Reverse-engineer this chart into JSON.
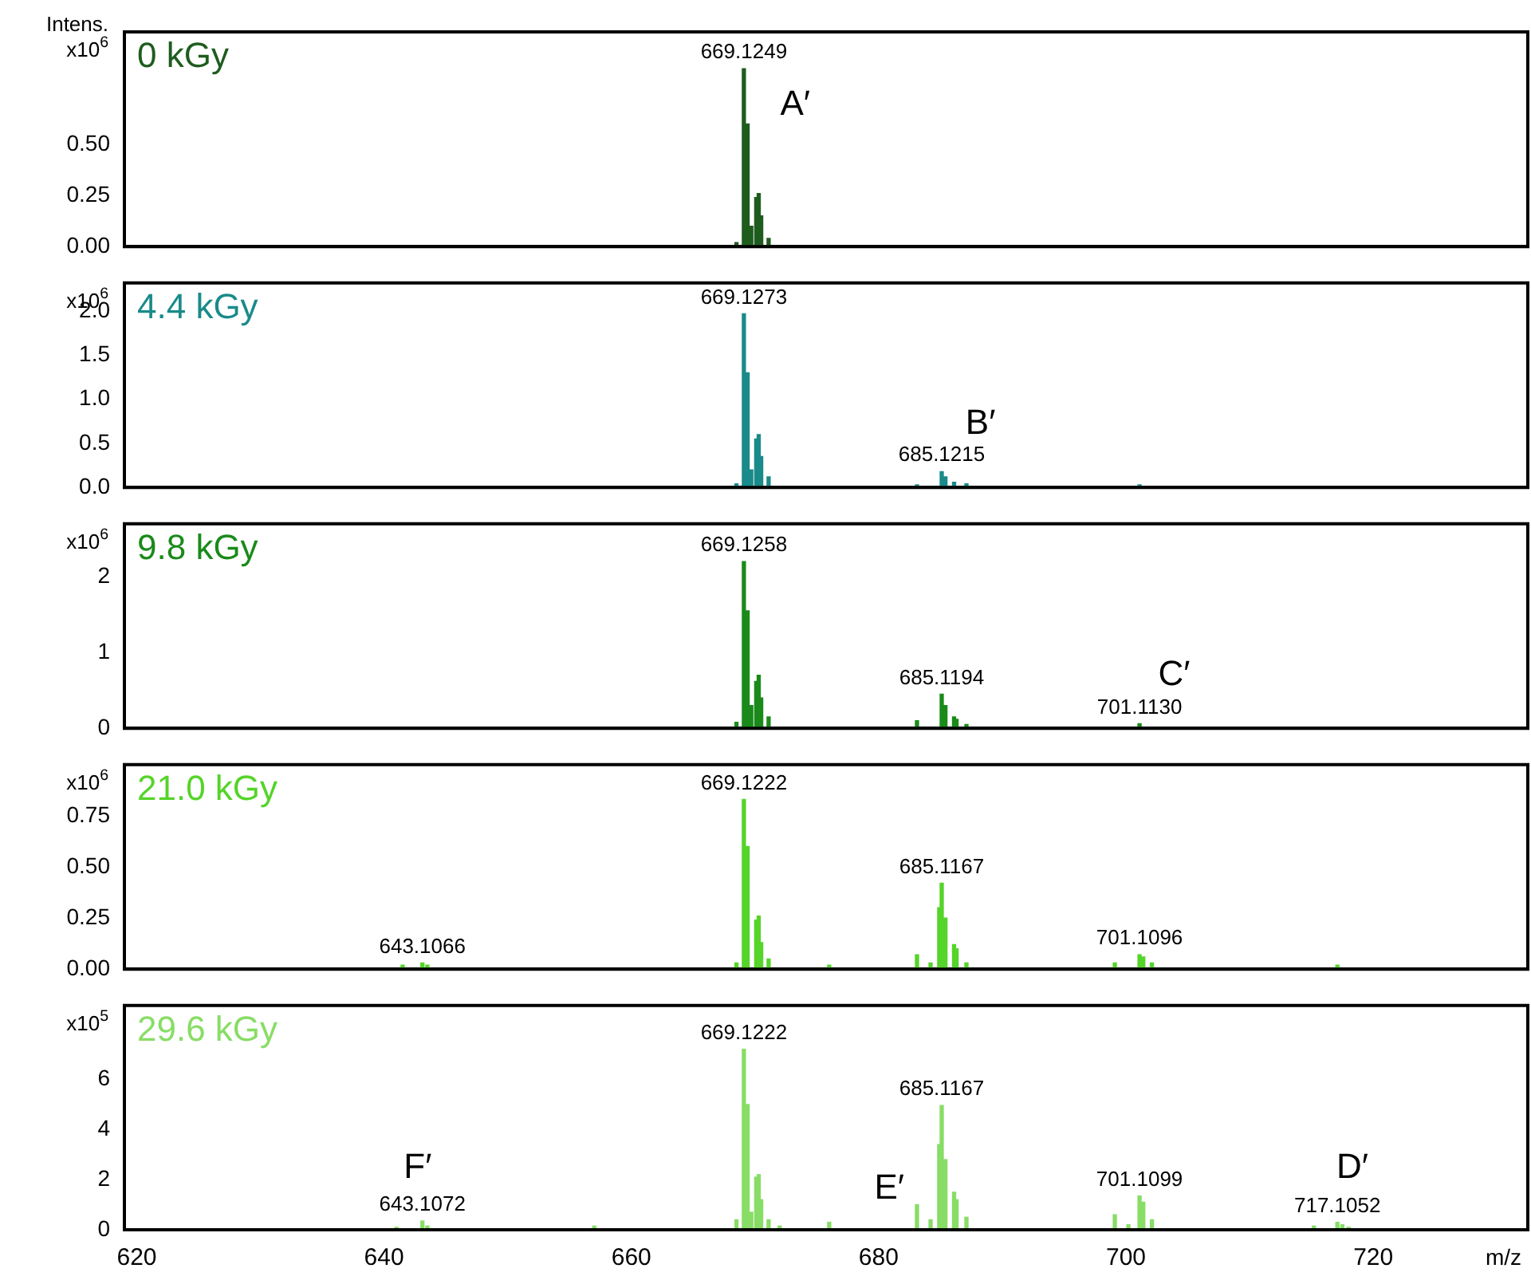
{
  "chart_data": [
    {
      "type": "bar",
      "title": "0 kGy",
      "ylabel": "Intens.\nx10$^{6}$",
      "tick_labels": "y",
      "xlim": [
        619,
        732.5
      ],
      "xticks": [
        620,
        640,
        660,
        680,
        700,
        720
      ],
      "ylim": [
        0,
        1.05
      ],
      "yticks": [
        {
          "value": 0,
          "label": "0.00"
        },
        0.25,
        {
          "value": 0.5,
          "label": "0.50"
        }
      ],
      "color": "#1e5c1e",
      "x": [
        668.5,
        669.1,
        669.4,
        669.7,
        670.1,
        670.3,
        670.5,
        671.1
      ],
      "values": [
        0.02,
        0.87,
        0.6,
        0.1,
        0.24,
        0.26,
        0.15,
        0.04
      ],
      "annotations": [
        {
          "text": "669.1249",
          "x": 669.1,
          "y": 0.87
        },
        "A′"
      ]
    },
    {
      "type": "bar",
      "title": "4.4 kGy",
      "ylabel": "x10$^{6}$",
      "tick_labels": "y",
      "xlim": [
        619,
        732.5
      ],
      "xticks": [
        620,
        640,
        660,
        680,
        700,
        720
      ],
      "ylim": [
        0,
        2.32
      ],
      "yticks": [
        {
          "value": 0,
          "label": "0.0"
        },
        0.5,
        {
          "value": 1,
          "label": "1.0"
        },
        1.5,
        {
          "value": 2,
          "label": "2.0"
        }
      ],
      "color": "#1a8a8a",
      "x": [
        668.5,
        669.1,
        669.4,
        669.7,
        670.1,
        670.3,
        670.5,
        671.1,
        683.1,
        685.1,
        685.4,
        686.1,
        687.1,
        701.1
      ],
      "values": [
        0.04,
        1.97,
        1.3,
        0.2,
        0.55,
        0.6,
        0.35,
        0.12,
        0.03,
        0.18,
        0.12,
        0.06,
        0.04,
        0.03
      ],
      "annotations": [
        {
          "text": "669.1273",
          "x": 669.1,
          "y": 1.97
        },
        {
          "text": "685.1215",
          "x": 685.1,
          "y": 0.18
        },
        "B′"
      ]
    },
    {
      "type": "bar",
      "title": "9.8 kGy",
      "ylabel": "x10$^{6}$",
      "tick_labels": "y",
      "xlim": [
        619,
        732.5
      ],
      "xticks": [
        620,
        640,
        660,
        680,
        700,
        720
      ],
      "ylim": [
        0,
        2.7
      ],
      "yticks": [
        0,
        1,
        2
      ],
      "color": "#1a8a1a",
      "x": [
        668.5,
        669.1,
        669.4,
        669.7,
        670.1,
        670.3,
        670.5,
        671.1,
        683.1,
        685.1,
        685.4,
        686.1,
        686.3,
        687.1,
        701.1
      ],
      "values": [
        0.08,
        2.2,
        1.55,
        0.3,
        0.62,
        0.7,
        0.4,
        0.15,
        0.1,
        0.45,
        0.3,
        0.15,
        0.12,
        0.05,
        0.06
      ],
      "annotations": [
        {
          "text": "669.1258",
          "x": 669.1,
          "y": 2.2
        },
        {
          "text": "685.1194",
          "x": 685.1,
          "y": 0.45
        },
        {
          "text": "701.1130",
          "x": 701.1,
          "y": 0.06
        },
        "C′"
      ]
    },
    {
      "type": "bar",
      "title": "21.0 kGy",
      "ylabel": "x10$^{6}$",
      "tick_labels": "y",
      "xlim": [
        619,
        732.5
      ],
      "xticks": [
        620,
        640,
        660,
        680,
        700,
        720
      ],
      "ylim": [
        0,
        1.0
      ],
      "yticks": [
        {
          "value": 0,
          "label": "0.00"
        },
        0.25,
        {
          "value": 0.5,
          "label": "0.50"
        },
        0.75
      ],
      "color": "#55d42a",
      "x": [
        641.5,
        643.1,
        643.5,
        668.5,
        669.1,
        669.4,
        670.1,
        670.3,
        670.5,
        671.1,
        676,
        683.1,
        684.2,
        684.9,
        685.1,
        685.4,
        686.1,
        686.3,
        687.1,
        699.1,
        701.1,
        701.4,
        702.1,
        717.1
      ],
      "values": [
        0.02,
        0.03,
        0.02,
        0.03,
        0.83,
        0.6,
        0.24,
        0.26,
        0.13,
        0.05,
        0.02,
        0.07,
        0.03,
        0.3,
        0.42,
        0.25,
        0.12,
        0.1,
        0.03,
        0.03,
        0.07,
        0.06,
        0.03,
        0.02
      ],
      "annotations": [
        {
          "text": "669.1222",
          "x": 669.1,
          "y": 0.83
        },
        {
          "text": "685.1167",
          "x": 685.1,
          "y": 0.42
        },
        {
          "text": "643.1066",
          "x": 643.1,
          "y": 0.03
        },
        {
          "text": "701.1096",
          "x": 701.1,
          "y": 0.07
        }
      ]
    },
    {
      "type": "bar",
      "title": "29.6 kGy",
      "ylabel": "x10$^{5}$",
      "xlabel": "m/z",
      "xlim": [
        619,
        732.5
      ],
      "xticks": [
        620,
        640,
        660,
        680,
        700,
        720
      ],
      "ylim": [
        0,
        8.95
      ],
      "yticks": [
        0,
        2,
        4,
        6
      ],
      "color": "#88dd66",
      "x": [
        641,
        643.1,
        643.5,
        657,
        668.5,
        669.1,
        669.4,
        669.7,
        670.1,
        670.3,
        670.5,
        671.1,
        672,
        676,
        683.1,
        684.2,
        684.9,
        685.1,
        685.4,
        686.1,
        686.3,
        687.1,
        699.1,
        700.2,
        701.1,
        701.4,
        702.1,
        715.2,
        717.1,
        717.5,
        718
      ],
      "values": [
        0.1,
        0.35,
        0.15,
        0.15,
        0.4,
        7.2,
        5.0,
        0.7,
        2.1,
        2.2,
        1.2,
        0.4,
        0.15,
        0.3,
        1.0,
        0.4,
        3.4,
        4.96,
        2.8,
        1.5,
        1.2,
        0.5,
        0.6,
        0.2,
        1.35,
        1.1,
        0.4,
        0.15,
        0.3,
        0.2,
        0.1
      ],
      "annotations": [
        {
          "text": "669.1222",
          "x": 669.1,
          "y": 7.2
        },
        {
          "text": "685.1167",
          "x": 685.1,
          "y": 4.96
        },
        {
          "text": "643.1072",
          "x": 643.1,
          "y": 0.35
        },
        {
          "text": "701.1099",
          "x": 701.1,
          "y": 1.35
        },
        {
          "text": "717.1052",
          "x": 717.1,
          "y": 0.3
        },
        "F′",
        "E′",
        "D′"
      ]
    }
  ]
}
